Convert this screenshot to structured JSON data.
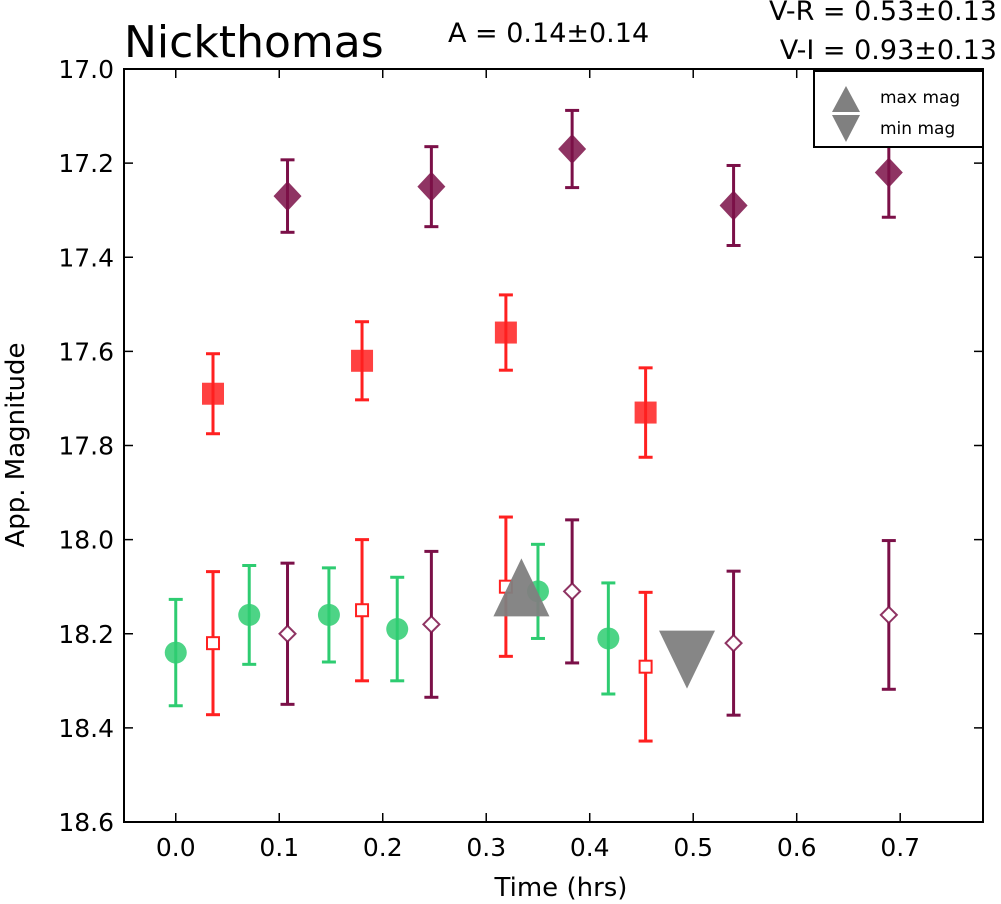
{
  "chart_data": {
    "type": "scatter",
    "title": "Nickthomas",
    "annotations": {
      "amplitude": "A  = 0.14±0.14",
      "v_minus_r": "V-R = 0.53±0.13",
      "v_minus_i": "V-I  = 0.93±0.13"
    },
    "xlabel": "Time (hrs)",
    "ylabel": "App. Magnitude",
    "xlim": [
      -0.05,
      0.78
    ],
    "ylim": [
      18.6,
      17.0
    ],
    "y_inverted": true,
    "xticks": [
      "0.0",
      "0.1",
      "0.2",
      "0.3",
      "0.4",
      "0.5",
      "0.6",
      "0.7"
    ],
    "yticks": [
      "17.0",
      "17.2",
      "17.4",
      "17.6",
      "17.8",
      "18.0",
      "18.2",
      "18.4",
      "18.6"
    ],
    "grid": false,
    "legend": {
      "placement": "top-right",
      "entries": [
        {
          "label": "max mag",
          "marker": "triangle-up"
        },
        {
          "label": "min mag",
          "marker": "triangle-down"
        }
      ]
    },
    "colors": {
      "green": "#2ecc71",
      "red": "#ff2020",
      "purple": "#7b1048",
      "gray": "#808080"
    },
    "series": [
      {
        "marker": "circle-filled",
        "color": "green",
        "x": [
          0.0,
          0.071,
          0.148,
          0.214,
          0.35,
          0.418
        ],
        "y": [
          18.24,
          18.16,
          18.16,
          18.19,
          18.11,
          18.21
        ],
        "err": [
          0.113,
          0.105,
          0.1,
          0.11,
          0.1,
          0.118
        ]
      },
      {
        "marker": "square-open",
        "color": "red",
        "x": [
          0.036,
          0.18,
          0.319,
          0.454
        ],
        "y": [
          18.22,
          18.15,
          18.1,
          18.27
        ],
        "err": [
          0.152,
          0.15,
          0.148,
          0.158
        ]
      },
      {
        "marker": "diamond-open",
        "color": "purple",
        "x": [
          0.108,
          0.247,
          0.383,
          0.539,
          0.689
        ],
        "y": [
          18.2,
          18.18,
          18.11,
          18.22,
          18.16
        ],
        "err": [
          0.15,
          0.155,
          0.152,
          0.153,
          0.158
        ]
      },
      {
        "marker": "square-filled",
        "color": "red",
        "x": [
          0.036,
          0.18,
          0.319,
          0.454
        ],
        "y": [
          17.69,
          17.62,
          17.56,
          17.73
        ],
        "err": [
          0.085,
          0.083,
          0.08,
          0.095
        ]
      },
      {
        "marker": "diamond-filled",
        "color": "purple",
        "x": [
          0.108,
          0.247,
          0.383,
          0.539,
          0.689
        ],
        "y": [
          17.27,
          17.25,
          17.17,
          17.29,
          17.22
        ],
        "err": [
          0.077,
          0.085,
          0.082,
          0.085,
          0.095
        ]
      }
    ],
    "extrema": [
      {
        "label": "max mag",
        "marker": "triangle-up",
        "x": 0.334,
        "y": 18.11
      },
      {
        "label": "min mag",
        "marker": "triangle-down",
        "x": 0.494,
        "y": 18.24
      }
    ]
  }
}
